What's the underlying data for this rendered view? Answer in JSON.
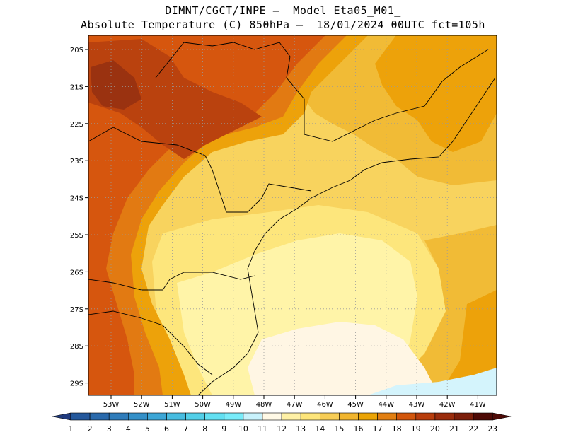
{
  "title_line1": "DIMNT/CGCT/INPE –  Model Eta05_M01_",
  "title_line2": "Absolute Temperature (C) 850hPa –  18/01/2024 00UTC fct=105h",
  "lat_ticks": [
    "20S",
    "21S",
    "22S",
    "23S",
    "24S",
    "25S",
    "26S",
    "27S",
    "28S",
    "29S"
  ],
  "lon_ticks": [
    "53W",
    "52W",
    "51W",
    "50W",
    "49W",
    "48W",
    "47W",
    "46W",
    "45W",
    "44W",
    "43W",
    "42W",
    "41W"
  ],
  "colorbar": {
    "labels": [
      "1",
      "2",
      "3",
      "4",
      "5",
      "6",
      "7",
      "8",
      "9",
      "10",
      "11",
      "12",
      "13",
      "14",
      "15",
      "16",
      "17",
      "18",
      "19",
      "20",
      "21",
      "22",
      "23"
    ],
    "colors": [
      "#203a7c",
      "#24589c",
      "#2a6aac",
      "#2f7cba",
      "#3490c8",
      "#3ca6d6",
      "#47bce0",
      "#52cfe8",
      "#62e0f2",
      "#78ecfa",
      "#c8f2fc",
      "#fff9e6",
      "#fff1a6",
      "#fde57a",
      "#f7cd56",
      "#f1b52e",
      "#eba406",
      "#e27f12",
      "#d2560c",
      "#b83d0c",
      "#9a2c0c",
      "#7c1e0a",
      "#4e0a06"
    ],
    "arrow_left_color": "#203a7c",
    "arrow_right_color": "#4e0a06"
  },
  "field_colors": {
    "c11": "#d4f4fc",
    "c12": "#fff6e4",
    "c13": "#fff4a8",
    "c14": "#fde67c",
    "c15": "#f8d35e",
    "c16": "#f1bb36",
    "c17": "#eda20a",
    "c18": "#e27a12",
    "c19": "#d6560e",
    "c20": "#ba420e",
    "c21": "#9a3210"
  }
}
